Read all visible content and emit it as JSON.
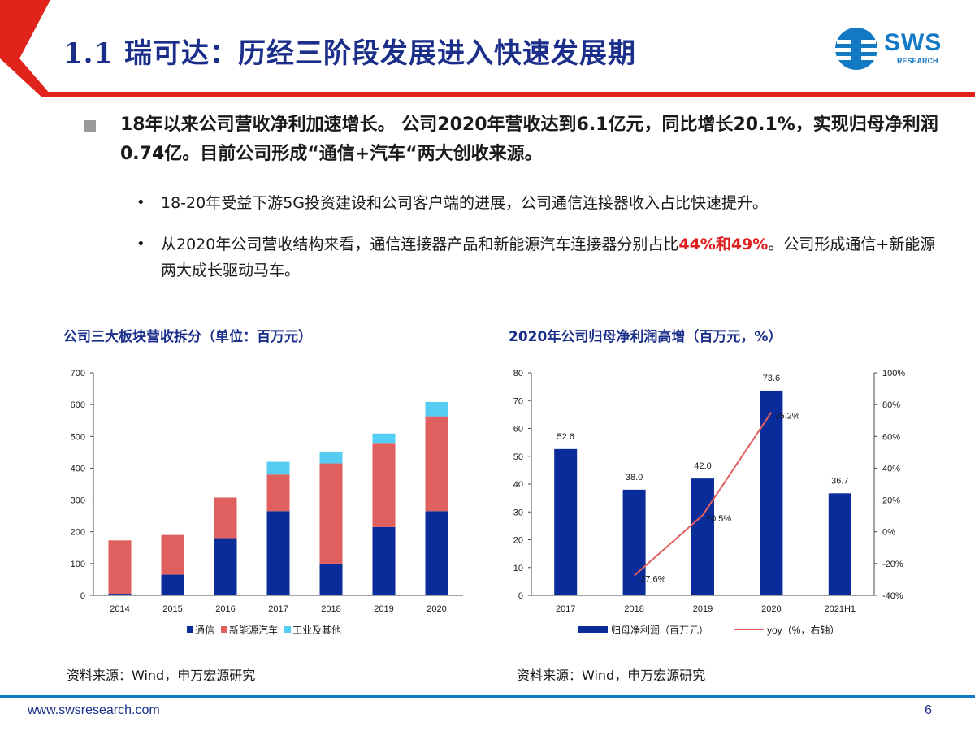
{
  "header": {
    "title": "1.1 瑞可达：历经三阶段发展进入快速发展期",
    "logo_text": "SWS",
    "logo_sub": "RESEARCH",
    "colors": {
      "red": "#e0241b",
      "navy": "#1a2e8a",
      "blue": "#1479c4"
    }
  },
  "main_point": {
    "text": "18年以来公司营收净利加速增长。 公司2020年营收达到6.1亿元，同比增长20.1%，实现归母净利润0.74亿。目前公司形成“通信+汽车“两大创收来源。"
  },
  "sub_points": [
    {
      "text": "18-20年受益下游5G投资建设和公司客户端的进展，公司通信连接器收入占比快速提升。"
    },
    {
      "text_before": "从2020年公司营收结构来看，通信连接器产品和新能源汽车连接器分别占比",
      "highlight": "44%和49%",
      "text_after": "。公司形成通信+新能源两大成长驱动马车。"
    }
  ],
  "chart_data": [
    {
      "type": "bar",
      "stacked": true,
      "title": "公司三大板块营收拆分（单位：百万元）",
      "categories": [
        "2014",
        "2015",
        "2016",
        "2017",
        "2018",
        "2019",
        "2020"
      ],
      "ylim": [
        0,
        700
      ],
      "yticks": [
        0,
        100,
        200,
        300,
        400,
        500,
        600,
        700
      ],
      "series": [
        {
          "name": "通信",
          "color": "#0a2c9a",
          "values": [
            5,
            65,
            180,
            265,
            100,
            215,
            265
          ]
        },
        {
          "name": "新能源汽车",
          "color": "#e06060",
          "values": [
            168,
            125,
            128,
            115,
            315,
            262,
            298
          ]
        },
        {
          "name": "工业及其他",
          "color": "#55ccf2",
          "values": [
            0,
            0,
            0,
            40,
            35,
            32,
            45
          ]
        }
      ],
      "legend_position": "bottom"
    },
    {
      "type": "bar+line",
      "title": "2020年公司归母净利润高增（百万元，%）",
      "categories": [
        "2017",
        "2018",
        "2019",
        "2020",
        "2021H1"
      ],
      "bar_series": {
        "name": "归母净利润（百万元）",
        "color": "#0a2c9a",
        "values": [
          52.6,
          38.0,
          42.0,
          73.6,
          36.7
        ],
        "labels": [
          "52.6",
          "38.0",
          "42.0",
          "73.6",
          "36.7"
        ]
      },
      "line_series": {
        "name": "yoy（%，右轴）",
        "color": "#e06060",
        "values": [
          null,
          -27.6,
          10.5,
          75.2,
          null
        ],
        "labels": [
          "",
          "-27.6%",
          "10.5%",
          "75.2%",
          ""
        ]
      },
      "ylim_left": [
        0,
        80
      ],
      "yticks_left": [
        0,
        10,
        20,
        30,
        40,
        50,
        60,
        70,
        80
      ],
      "ylim_right": [
        -40,
        100
      ],
      "yticks_right": [
        "-40%",
        "-20%",
        "0%",
        "20%",
        "40%",
        "60%",
        "80%",
        "100%"
      ],
      "legend_position": "bottom"
    }
  ],
  "sources": [
    "资料来源：Wind，申万宏源研究",
    "资料来源：Wind，申万宏源研究"
  ],
  "footer": {
    "url": "www.swsresearch.com",
    "page": "6"
  }
}
